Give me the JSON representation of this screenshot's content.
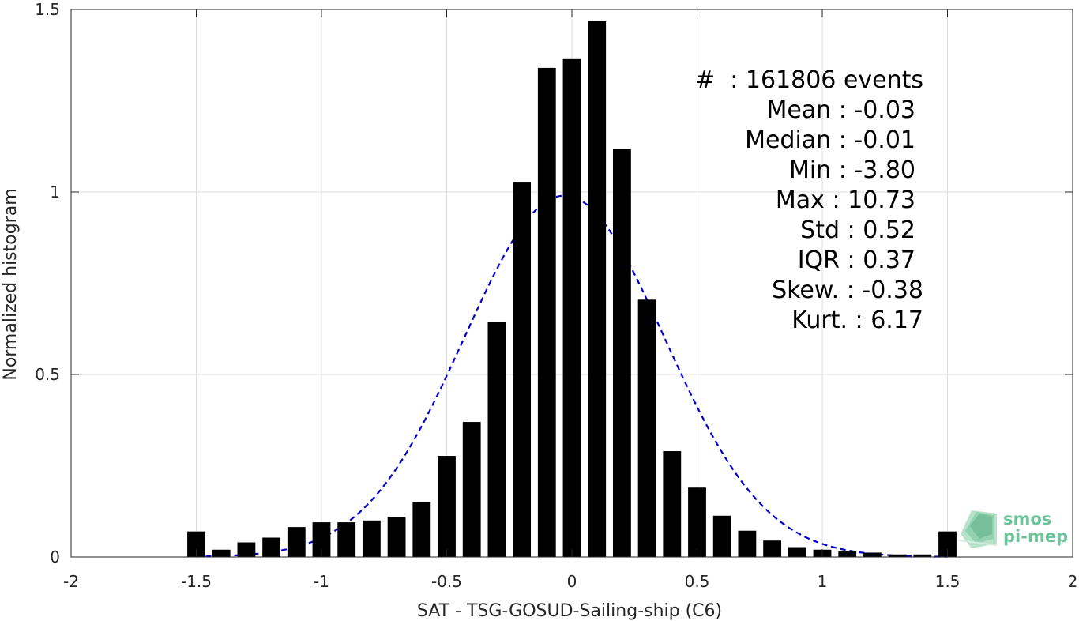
{
  "chart_data": {
    "type": "bar",
    "xlabel": "SAT - TSG-GOSUD-Sailing-ship (C6)",
    "ylabel": "Normalized histogram",
    "xlim": [
      -2,
      2
    ],
    "ylim": [
      0,
      1.5
    ],
    "xticks": [
      -2,
      -1.5,
      -1,
      -0.5,
      0,
      0.5,
      1,
      1.5,
      2
    ],
    "xtick_labels": [
      "-2",
      "-1.5",
      "-1",
      "-0.5",
      "0",
      "0.5",
      "1",
      "1.5",
      "2"
    ],
    "yticks": [
      0,
      0.5,
      1,
      1.5
    ],
    "ytick_labels": [
      "0",
      "0.5",
      "1",
      "1.5"
    ],
    "grid": true,
    "bin_width": 0.1,
    "bar_color": "#000000",
    "x": [
      -1.5,
      -1.4,
      -1.3,
      -1.2,
      -1.1,
      -1.0,
      -0.9,
      -0.8,
      -0.7,
      -0.6,
      -0.5,
      -0.4,
      -0.3,
      -0.2,
      -0.1,
      0.0,
      0.1,
      0.2,
      0.3,
      0.4,
      0.5,
      0.6,
      0.7,
      0.8,
      0.9,
      1.0,
      1.1,
      1.2,
      1.3,
      1.4,
      1.5
    ],
    "values": [
      0.07,
      0.02,
      0.04,
      0.053,
      0.082,
      0.095,
      0.095,
      0.1,
      0.11,
      0.15,
      0.277,
      0.37,
      0.643,
      1.028,
      1.34,
      1.364,
      1.468,
      1.118,
      0.705,
      0.29,
      0.19,
      0.113,
      0.072,
      0.045,
      0.027,
      0.02,
      0.015,
      0.012,
      0.007,
      0.007,
      0.07
    ],
    "fit_curve": {
      "type": "gaussian",
      "mean": -0.03,
      "std": 0.4,
      "peak": 0.99,
      "style": "dashed",
      "color": "#0000cc"
    },
    "stats": [
      "#  : 161806 events",
      "Mean : -0.03",
      "Median : -0.01",
      "Min : -3.80",
      "Max : 10.73",
      "Std : 0.52",
      "IQR : 0.37",
      "Skew. : -0.38",
      "Kurt. : 6.17"
    ]
  },
  "logo": {
    "line1": "smos",
    "line2": "pi-mep",
    "color": "#5fbf8f"
  }
}
